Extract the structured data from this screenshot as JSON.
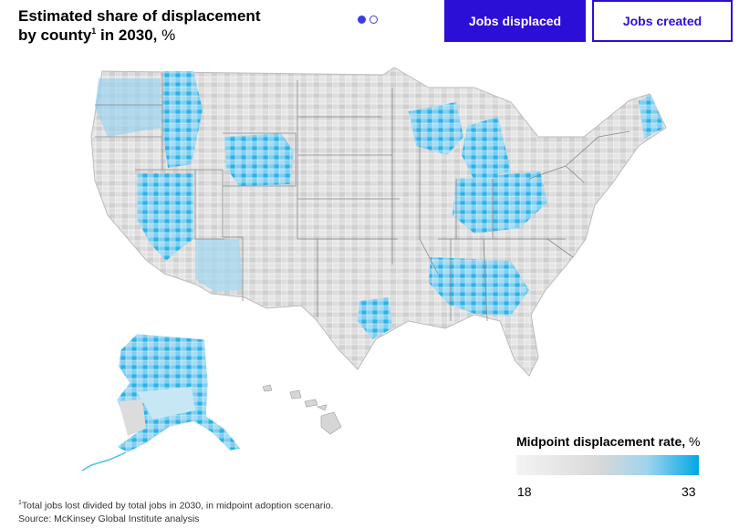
{
  "header": {
    "title_line1": "Estimated share of displacement",
    "title_line2_pre": "by county",
    "title_sup": "1",
    "title_line2_post": " in 2030,",
    "title_unit": " %"
  },
  "pager": {
    "pages": 2,
    "active_index": 0
  },
  "toggle": {
    "jobs_displaced_label": "Jobs displaced",
    "jobs_created_label": "Jobs created",
    "active": "jobs_displaced"
  },
  "legend": {
    "title": "Midpoint displacement rate,",
    "unit": " %",
    "min": "18",
    "max": "33",
    "colors": [
      "#f4f4f4",
      "#d9d9d9",
      "#9fd3ee",
      "#00a9e5"
    ]
  },
  "footnote": {
    "marker": "1",
    "text": "Total jobs lost divided by total jobs in 2030, in midpoint adoption scenario.",
    "source": "Source: McKinsey Global Institute analysis"
  },
  "colors": {
    "accent": "#2b0fd6",
    "map_low": "#d9d9d9",
    "map_high": "#00a9e5",
    "map_mid": "#8fd0f0"
  }
}
